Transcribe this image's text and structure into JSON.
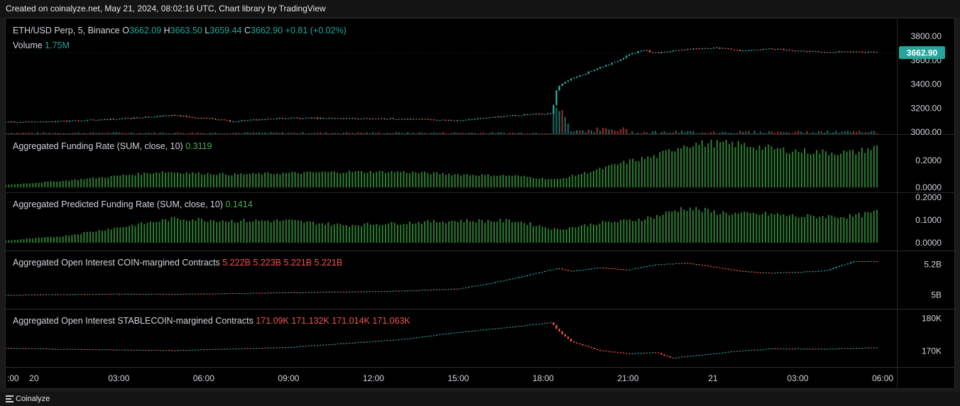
{
  "header": {
    "caption": "Created on coinalyze.net, May 21, 2024, 08:02:16 UTC, Chart library by TradingView"
  },
  "footer": {
    "brand": "Coinalyze"
  },
  "colors": {
    "up": "#26a69a",
    "down": "#ef5350",
    "funding": "#4caf50",
    "funding_bar": "#2e7d32",
    "price_label_bg": "#26a69a",
    "grid": "#1f1f1f"
  },
  "chart_data": [
    {
      "type": "candlestick",
      "pane": "price",
      "symbol": "ETH/USD Perp, 5, Binance",
      "ohlc": {
        "O_label": "O",
        "O": "3662.09",
        "H_label": "H",
        "H": "3663.50",
        "L_label": "L",
        "L": "3659.44",
        "C_label": "C",
        "C": "3662.90",
        "change": "+0.81 (+0.02%)"
      },
      "volume_label": "Volume",
      "volume": "1.75M",
      "last_price_label": "3662.90",
      "y_ticks": [
        "3000.00",
        "3200.00",
        "3400.00",
        "3600.00",
        "3800.00"
      ],
      "ylim": [
        3000,
        3800
      ],
      "series": [
        {
          "name": "ETH/USD Perp",
          "x": [
            0,
            2,
            4,
            6,
            8,
            10,
            12,
            14,
            16,
            18,
            19.3,
            19.5,
            20,
            20.5,
            21,
            21.5,
            22,
            22.5,
            23,
            24,
            25,
            26,
            27,
            28,
            29,
            30,
            30.8
          ],
          "values": [
            3082,
            3090,
            3110,
            3140,
            3090,
            3118,
            3112,
            3110,
            3095,
            3140,
            3155,
            3380,
            3450,
            3490,
            3540,
            3580,
            3640,
            3685,
            3660,
            3690,
            3705,
            3680,
            3695,
            3680,
            3665,
            3672,
            3663
          ]
        }
      ]
    },
    {
      "type": "bar",
      "pane": "funding",
      "title": "Aggregated Funding Rate (SUM, close, 10)",
      "value": "0.3119",
      "y_ticks": [
        "0.0000",
        "0.2000"
      ],
      "ylim": [
        0,
        0.36
      ],
      "series": [
        {
          "name": "Aggregated Funding Rate (SUM, close, 10)",
          "x": [
            0,
            2,
            4,
            5.5,
            8,
            10,
            12,
            14,
            16,
            18,
            19.5,
            21,
            22,
            23,
            24,
            25,
            26,
            27,
            28,
            29,
            30,
            30.8
          ],
          "values": [
            0.02,
            0.05,
            0.09,
            0.12,
            0.1,
            0.11,
            0.12,
            0.12,
            0.1,
            0.09,
            0.06,
            0.14,
            0.2,
            0.24,
            0.33,
            0.34,
            0.33,
            0.3,
            0.28,
            0.27,
            0.27,
            0.31
          ]
        }
      ]
    },
    {
      "type": "bar",
      "pane": "predicted_funding",
      "title": "Aggregated Predicted Funding Rate (SUM, close, 10)",
      "value": "0.1414",
      "y_ticks": [
        "0.0000",
        "0.1000",
        "0.2000"
      ],
      "ylim": [
        0,
        0.2
      ],
      "series": [
        {
          "name": "Aggregated Predicted Funding Rate (SUM, close, 10)",
          "x": [
            0,
            2,
            4,
            6,
            8,
            10,
            12,
            14,
            16,
            18,
            19.5,
            21,
            22,
            23,
            24,
            25,
            26,
            27,
            28,
            29,
            30,
            30.8
          ],
          "values": [
            0.01,
            0.03,
            0.07,
            0.11,
            0.1,
            0.1,
            0.08,
            0.09,
            0.1,
            0.1,
            0.06,
            0.09,
            0.1,
            0.12,
            0.16,
            0.14,
            0.13,
            0.13,
            0.12,
            0.12,
            0.12,
            0.14
          ]
        }
      ]
    },
    {
      "type": "candlestick",
      "pane": "oi_coin",
      "title": "Aggregated Open Interest COIN-margined Contracts",
      "values_label": [
        "5.222B",
        "5.223B",
        "5.221B",
        "5.221B"
      ],
      "y_ticks": [
        "5B",
        "5.2B"
      ],
      "ylim": [
        4.96,
        5.24
      ],
      "series": [
        {
          "name": "Aggregated Open Interest COIN-margined Contracts",
          "x": [
            0,
            2,
            4,
            6,
            8,
            10,
            12,
            14,
            16,
            17,
            18,
            19.5,
            20,
            21,
            22,
            23,
            24,
            25,
            26,
            27,
            28,
            29,
            30,
            30.8
          ],
          "values": [
            4.999,
            5.003,
            5.007,
            5.006,
            5.01,
            5.016,
            5.02,
            5.027,
            5.04,
            5.072,
            5.11,
            5.175,
            5.155,
            5.18,
            5.165,
            5.2,
            5.21,
            5.185,
            5.155,
            5.145,
            5.15,
            5.16,
            5.222,
            5.221
          ]
        }
      ]
    },
    {
      "type": "candlestick",
      "pane": "oi_stable",
      "title": "Aggregated Open Interest STABLECOIN-margined Contracts",
      "values_label": [
        "171.09K",
        "171.132K",
        "171.014K",
        "171.063K"
      ],
      "y_ticks": [
        "170K",
        "180K"
      ],
      "ylim": [
        167.5,
        181
      ],
      "series": [
        {
          "name": "Aggregated Open Interest STABLECOIN-margined Contracts",
          "x": [
            0,
            2,
            4,
            6,
            8,
            10,
            12,
            14,
            16,
            18,
            19.3,
            19.5,
            20,
            21,
            22,
            23,
            23.5,
            24,
            25,
            26,
            27,
            28,
            29,
            30,
            30.8
          ],
          "values": [
            170.9,
            170.6,
            170.4,
            170.2,
            170.7,
            171.2,
            172.4,
            173.6,
            175.8,
            177.5,
            178.8,
            176.5,
            172.8,
            170.1,
            169.3,
            169.6,
            167.9,
            168.3,
            169.2,
            170.1,
            170.7,
            170.7,
            170.7,
            170.9,
            171.06
          ]
        }
      ]
    }
  ],
  "x_axis": {
    "ticks": [
      {
        "label": ":00",
        "x": 0
      },
      {
        "label": "20",
        "x": 1
      },
      {
        "label": "03:00",
        "x": 4
      },
      {
        "label": "06:00",
        "x": 7
      },
      {
        "label": "09:00",
        "x": 10
      },
      {
        "label": "12:00",
        "x": 13
      },
      {
        "label": "15:00",
        "x": 16
      },
      {
        "label": "18:00",
        "x": 19
      },
      {
        "label": "21:00",
        "x": 22
      },
      {
        "label": "21",
        "x": 25
      },
      {
        "label": "03:00",
        "x": 28
      },
      {
        "label": "06:00",
        "x": 31
      }
    ]
  }
}
